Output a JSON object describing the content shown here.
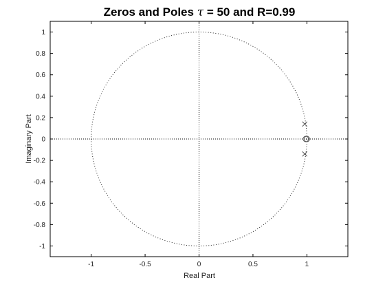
{
  "chart_data": {
    "type": "scatter",
    "title_parts": {
      "prefix": "Zeros and Poles ",
      "tau_symbol": "τ",
      "suffix": " = 50 and R=0.99"
    },
    "xlabel": "Real Part",
    "ylabel": "Imaginary Part",
    "xlim": [
      -1.38,
      1.38
    ],
    "ylim": [
      -1.1,
      1.1
    ],
    "xticks": [
      -1,
      -0.5,
      0,
      0.5,
      1
    ],
    "xtick_labels": [
      "-1",
      "-0.5",
      "0",
      "0.5",
      "1"
    ],
    "yticks": [
      -1,
      -0.8,
      -0.6,
      -0.4,
      -0.2,
      0,
      0.2,
      0.4,
      0.6,
      0.8,
      1
    ],
    "ytick_labels": [
      "-1",
      "-0.8",
      "-0.6",
      "-0.4",
      "-0.2",
      "0",
      "0.2",
      "0.4",
      "0.6",
      "0.8",
      "1"
    ],
    "unit_circle": true,
    "grid": false,
    "series": [
      {
        "marker": "o",
        "points": [
          [
            1.0,
            0.0
          ],
          [
            0.99,
            0.0
          ]
        ]
      },
      {
        "marker": "x",
        "points": [
          [
            0.98,
            0.14
          ],
          [
            0.98,
            -0.14
          ]
        ]
      }
    ]
  },
  "colors": {
    "axes": "#000000",
    "marker": "#555555",
    "circle": "#222222"
  }
}
